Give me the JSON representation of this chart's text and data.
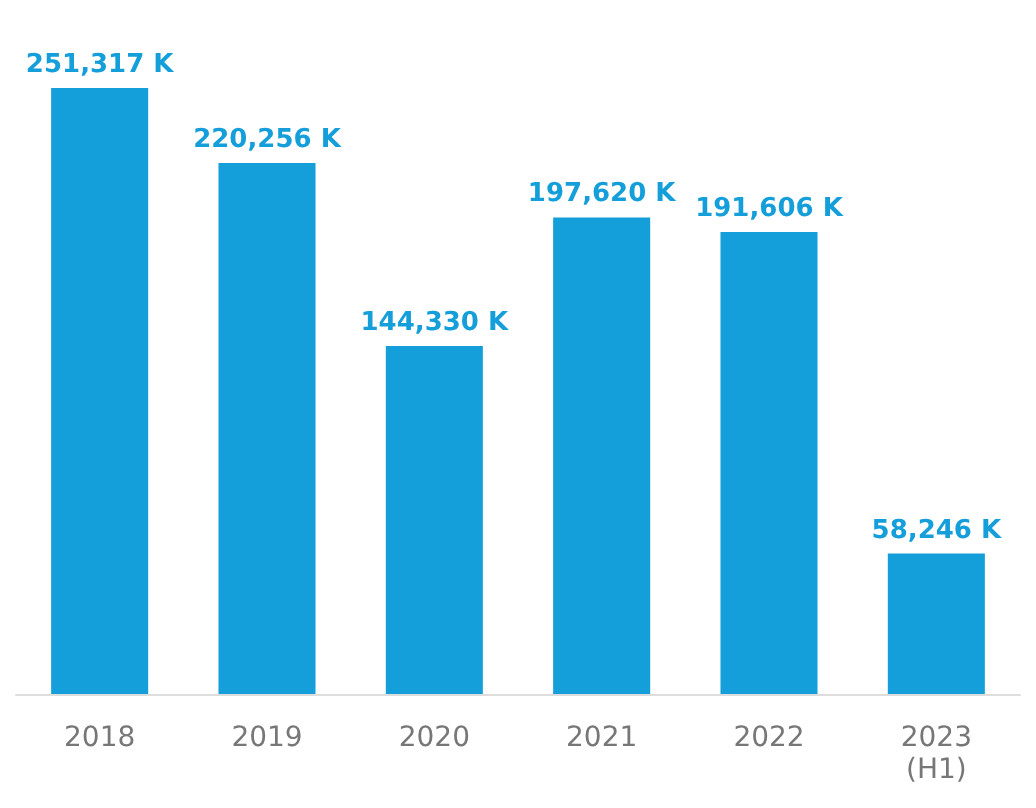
{
  "chart_data": {
    "type": "bar",
    "categories": [
      "2018",
      "2019",
      "2020",
      "2021",
      "2022",
      "2023\n(H1)"
    ],
    "values": [
      251317,
      220256,
      144330,
      197620,
      191606,
      58246
    ],
    "value_labels": [
      "251,317 K",
      "220,256 K",
      "144,330 K",
      "197,620 K",
      "191,606 K",
      "58,246 K"
    ],
    "color": "#159fda"
  }
}
